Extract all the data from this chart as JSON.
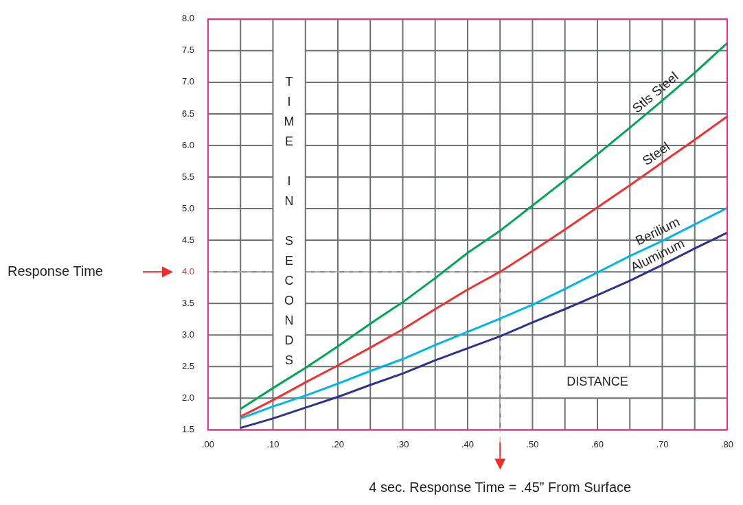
{
  "chart_data": {
    "type": "line",
    "xlabel": "DISTANCE",
    "ylabel": "TIME IN SECONDS",
    "x": [
      0.05,
      0.1,
      0.15,
      0.2,
      0.25,
      0.3,
      0.35,
      0.4,
      0.45,
      0.5,
      0.55,
      0.6,
      0.65,
      0.7,
      0.75,
      0.8
    ],
    "series": [
      {
        "name": "Stls Steel",
        "color": "#00a651",
        "values": [
          1.83,
          2.16,
          2.48,
          2.82,
          3.18,
          3.52,
          3.9,
          4.3,
          4.65,
          5.05,
          5.45,
          5.86,
          6.28,
          6.71,
          7.15,
          7.62
        ]
      },
      {
        "name": "Steel",
        "color": "#ee3131",
        "values": [
          1.71,
          1.97,
          2.25,
          2.52,
          2.8,
          3.09,
          3.41,
          3.72,
          4.0,
          4.33,
          4.67,
          5.02,
          5.37,
          5.73,
          6.09,
          6.46
        ]
      },
      {
        "name": "Berilium",
        "color": "#00b4ec",
        "values": [
          1.68,
          1.87,
          2.04,
          2.23,
          2.43,
          2.62,
          2.84,
          3.05,
          3.26,
          3.48,
          3.73,
          3.99,
          4.25,
          4.49,
          4.75,
          5.01
        ]
      },
      {
        "name": "Aluminum",
        "color": "#2e3192",
        "values": [
          1.53,
          1.68,
          1.85,
          2.02,
          2.21,
          2.39,
          2.6,
          2.79,
          2.98,
          3.2,
          3.41,
          3.63,
          3.86,
          4.11,
          4.37,
          4.62
        ]
      }
    ],
    "xlim": [
      0,
      0.8
    ],
    "ylim": [
      1.5,
      8.0
    ],
    "xticks": [
      {
        "value": 0,
        "label": ".00"
      },
      {
        "value": 0.05,
        "label": null
      },
      {
        "value": 0.1,
        "label": ".10"
      },
      {
        "value": 0.15,
        "label": null
      },
      {
        "value": 0.2,
        "label": ".20"
      },
      {
        "value": 0.25,
        "label": null
      },
      {
        "value": 0.3,
        "label": ".30"
      },
      {
        "value": 0.35,
        "label": null
      },
      {
        "value": 0.4,
        "label": ".40"
      },
      {
        "value": 0.45,
        "label": null
      },
      {
        "value": 0.5,
        "label": ".50"
      },
      {
        "value": 0.55,
        "label": null
      },
      {
        "value": 0.6,
        "label": ".60"
      },
      {
        "value": 0.65,
        "label": null
      },
      {
        "value": 0.7,
        "label": ".70"
      },
      {
        "value": 0.75,
        "label": null
      },
      {
        "value": 0.8,
        "label": ".80"
      }
    ],
    "yticks": [
      {
        "value": 1.5,
        "label": "1.5"
      },
      {
        "value": 2,
        "label": "2.0"
      },
      {
        "value": 2.5,
        "label": "2.5"
      },
      {
        "value": 3,
        "label": "3.0"
      },
      {
        "value": 3.5,
        "label": "3.5"
      },
      {
        "value": 4,
        "label": "4.0"
      },
      {
        "value": 4.5,
        "label": "4.5"
      },
      {
        "value": 5,
        "label": "5.0"
      },
      {
        "value": 5.5,
        "label": "5.5"
      },
      {
        "value": 6,
        "label": "6.0"
      },
      {
        "value": 6.5,
        "label": "6.5"
      },
      {
        "value": 7,
        "label": "7.0"
      },
      {
        "value": 7.5,
        "label": "7.5"
      },
      {
        "value": 8,
        "label": "8.0"
      }
    ],
    "ref_lines": [
      {
        "axis": "y",
        "value": 4,
        "color": "#bdc1c5",
        "line_style": "dashed"
      },
      {
        "axis": "x",
        "value": 0.45,
        "color": "#bdc1c5",
        "line_style": "dashed"
      }
    ],
    "annotations": [
      "Response Time",
      "4 sec. Response Time = .45” From Surface"
    ],
    "grid": true,
    "legend": false,
    "marker": "none",
    "line_style": "solid"
  }
}
